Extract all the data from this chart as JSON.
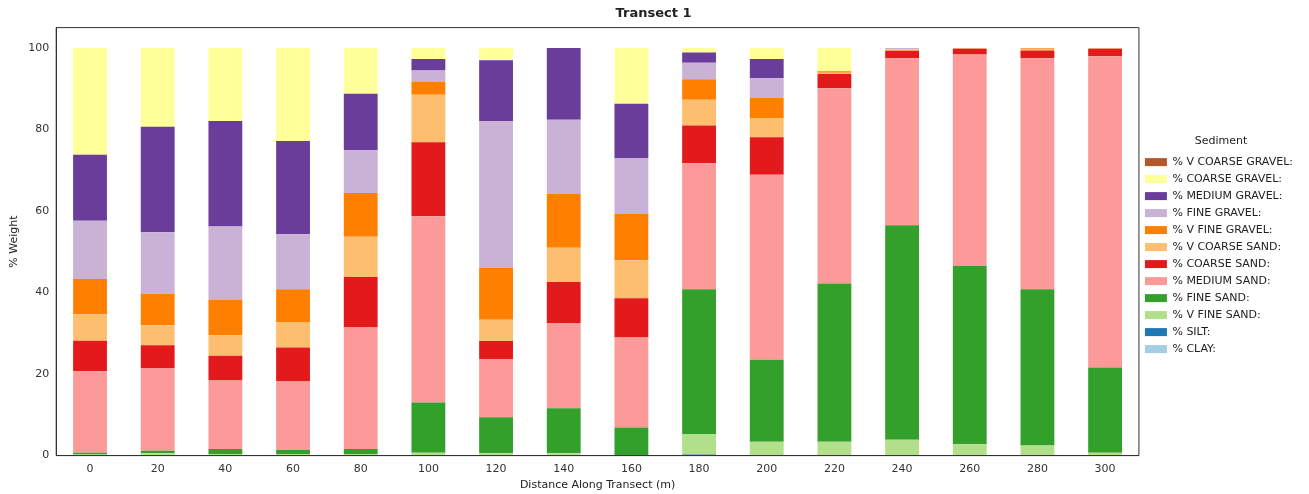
{
  "chart_data": {
    "type": "bar",
    "title": "Transect 1",
    "xlabel": "Distance Along Transect (m)",
    "ylabel": "% Weight",
    "legend_title": "Sediment",
    "legend": "right",
    "stacked": true,
    "grid": false,
    "categories": [
      "0",
      "20",
      "40",
      "60",
      "80",
      "100",
      "120",
      "140",
      "160",
      "180",
      "200",
      "220",
      "240",
      "260",
      "280",
      "300"
    ],
    "ylim": [
      0,
      105
    ],
    "yticks": [
      0,
      20,
      40,
      60,
      80,
      100
    ],
    "series": [
      {
        "name": "% CLAY:",
        "color": "#a6cee3",
        "values": [
          0,
          0,
          0,
          0,
          0,
          0,
          0,
          0,
          0,
          0,
          0,
          0,
          0,
          0,
          0,
          0
        ]
      },
      {
        "name": "% SILT:",
        "color": "#1f78b4",
        "values": [
          0,
          0,
          0,
          0,
          0,
          0,
          0,
          0,
          0,
          0.3,
          0,
          0,
          0,
          0,
          0,
          0
        ]
      },
      {
        "name": "% V FINE SAND:",
        "color": "#b2df8a",
        "values": [
          0.3,
          0.6,
          0.4,
          0.4,
          0.4,
          0.7,
          0.6,
          0.6,
          0,
          5.0,
          3.4,
          3.4,
          3.9,
          2.8,
          2.5,
          0.7
        ]
      },
      {
        "name": "% FINE SAND:",
        "color": "#33a02c",
        "values": [
          0.4,
          0.6,
          1.2,
          1.0,
          1.2,
          12.3,
          8.8,
          11.0,
          6.9,
          35.5,
          20.1,
          38.8,
          52.6,
          43.7,
          38.3,
          20.9
        ]
      },
      {
        "name": "% MEDIUM SAND:",
        "color": "#fb9a99",
        "values": [
          20.0,
          20.3,
          16.8,
          16.8,
          29.8,
          45.7,
          14.3,
          20.9,
          22.1,
          30.9,
          45.4,
          47.9,
          41.0,
          51.9,
          56.7,
          76.4
        ]
      },
      {
        "name": "% COARSE SAND:",
        "color": "#e31a1c",
        "values": [
          7.5,
          5.6,
          6.1,
          8.3,
          12.4,
          18.2,
          4.4,
          10.1,
          9.6,
          9.3,
          9.2,
          3.5,
          1.8,
          1.4,
          1.9,
          1.8
        ]
      },
      {
        "name": "% V COARSE SAND:",
        "color": "#fdbf6f",
        "values": [
          6.5,
          4.9,
          5.0,
          6.3,
          9.9,
          11.6,
          5.2,
          8.4,
          9.3,
          6.3,
          4.6,
          0.3,
          0.4,
          0.2,
          0.4,
          0.2
        ]
      },
      {
        "name": "% V FINE GRAVEL:",
        "color": "#ff7f00",
        "values": [
          8.6,
          7.7,
          8.8,
          8.0,
          10.7,
          3.3,
          12.7,
          13.2,
          11.4,
          5.0,
          5.0,
          0.4,
          0,
          0,
          0.2,
          0
        ]
      },
      {
        "name": "% FINE GRAVEL:",
        "color": "#cab2d6",
        "values": [
          14.3,
          15.1,
          17.9,
          13.5,
          10.5,
          2.7,
          36.1,
          18.2,
          13.7,
          4.1,
          4.9,
          0,
          0.3,
          0,
          0,
          0
        ]
      },
      {
        "name": "% MEDIUM GRAVEL:",
        "color": "#6a3d9a",
        "values": [
          16.2,
          25.9,
          25.9,
          22.9,
          13.9,
          2.8,
          14.9,
          17.6,
          13.3,
          2.5,
          4.7,
          0,
          0,
          0,
          0,
          0
        ]
      },
      {
        "name": "% COARSE GRAVEL:",
        "color": "#ffff99",
        "values": [
          26.2,
          19.3,
          17.9,
          22.8,
          11.2,
          2.7,
          3.0,
          0,
          13.7,
          1.1,
          2.7,
          5.7,
          0,
          0,
          0,
          0
        ]
      },
      {
        "name": "% V COARSE GRAVEL:",
        "color": "#b15928",
        "values": [
          0,
          0,
          0,
          0,
          0,
          0,
          0,
          0,
          0,
          0,
          0,
          0,
          0,
          0,
          0,
          0
        ]
      }
    ]
  }
}
